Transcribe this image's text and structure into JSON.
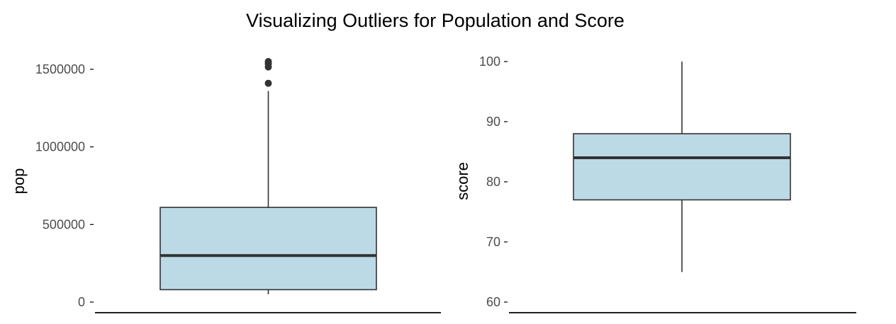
{
  "title": "Visualizing Outliers for Population and Score",
  "colors": {
    "box_fill": "#bcd9e6",
    "box_stroke": "#333333",
    "axis": "#000000",
    "tick_text": "#4d4d4d"
  },
  "chart_data": [
    {
      "type": "boxplot",
      "ylabel": "pop",
      "ylim": [
        0,
        1550000
      ],
      "yticks": [
        0,
        500000,
        1000000,
        1500000
      ],
      "ytick_labels": [
        "0",
        "500000",
        "1000000",
        "1500000"
      ],
      "box": {
        "whisker_low": 50000,
        "q1": 80000,
        "median": 300000,
        "q3": 610000,
        "whisker_high": 1360000
      },
      "outliers": [
        1410000,
        1515000,
        1535000,
        1550000
      ]
    },
    {
      "type": "boxplot",
      "ylabel": "score",
      "ylim": [
        60,
        100
      ],
      "yticks": [
        60,
        70,
        80,
        90,
        100
      ],
      "ytick_labels": [
        "60",
        "70",
        "80",
        "90",
        "100"
      ],
      "box": {
        "whisker_low": 65,
        "q1": 77,
        "median": 84,
        "q3": 88,
        "whisker_high": 100
      },
      "outliers": []
    }
  ]
}
